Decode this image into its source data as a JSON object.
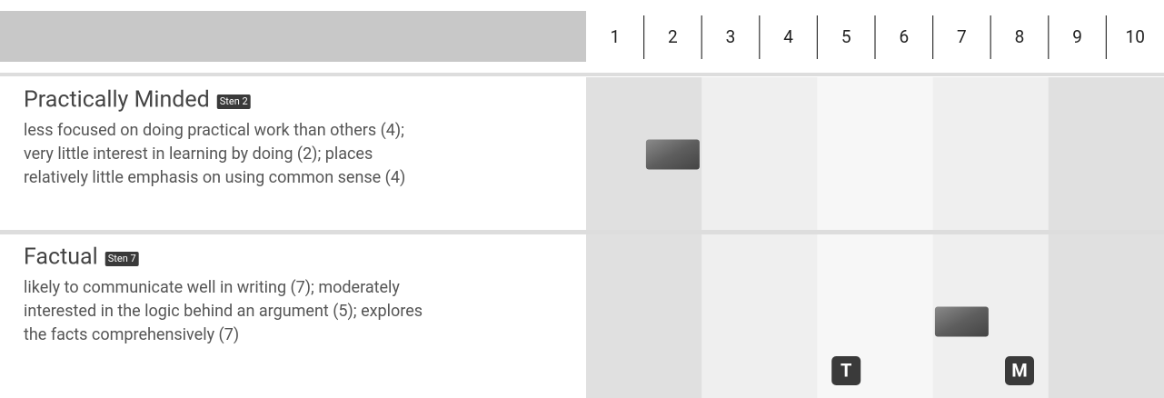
{
  "header": {
    "scale": [
      1,
      2,
      3,
      4,
      5,
      6,
      7,
      8,
      9,
      10
    ]
  },
  "rows": [
    {
      "title": "Practically Minded",
      "badge": "Sten 2",
      "sten": 2,
      "description": [
        "less focused on doing practical work than others (4);",
        "very little interest in learning by doing (2); places",
        "relatively little emphasis on using common sense (4)"
      ],
      "markers": []
    },
    {
      "title": "Factual",
      "badge": "Sten 7",
      "sten": 7,
      "description": [
        "likely to communicate well in writing (7); moderately",
        "interested in the logic behind an argument (5); explores",
        "the facts comprehensively (7)"
      ],
      "markers": [
        {
          "label": "T",
          "position": 5
        },
        {
          "label": "M",
          "position": 8
        }
      ]
    }
  ]
}
